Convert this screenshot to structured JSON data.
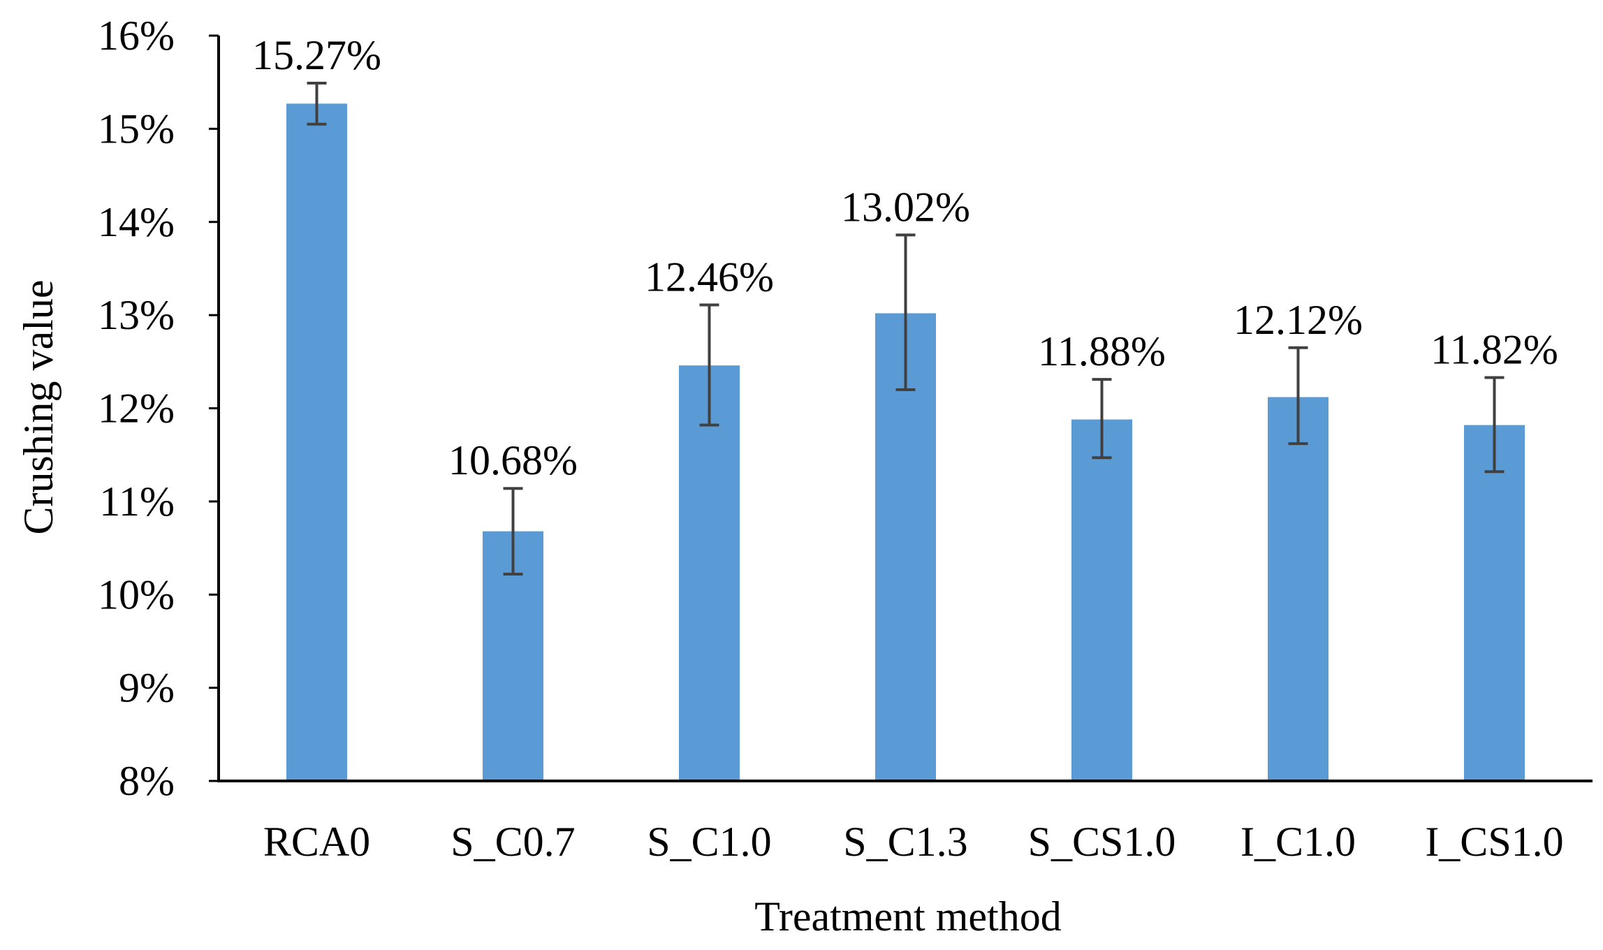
{
  "chart_data": {
    "type": "bar",
    "title": "",
    "xlabel": "Treatment method",
    "ylabel": "Crushing value",
    "ylim": [
      8,
      16
    ],
    "yticks": [
      8,
      9,
      10,
      11,
      12,
      13,
      14,
      15,
      16
    ],
    "ytick_labels": [
      "8%",
      "9%",
      "10%",
      "11%",
      "12%",
      "13%",
      "14%",
      "15%",
      "16%"
    ],
    "categories": [
      "RCA0",
      "S_C0.7",
      "S_C1.0",
      "S_C1.3",
      "S_CS1.0",
      "I_C1.0",
      "I_CS1.0"
    ],
    "values": [
      15.27,
      10.68,
      12.46,
      13.02,
      11.88,
      12.12,
      11.82
    ],
    "data_labels": [
      "15.27%",
      "10.68%",
      "12.46%",
      "13.02%",
      "11.88%",
      "12.12%",
      "11.82%"
    ],
    "error_low": [
      15.05,
      10.22,
      11.82,
      12.2,
      11.47,
      11.62,
      11.32
    ],
    "error_high": [
      15.49,
      11.14,
      13.11,
      13.86,
      12.31,
      12.65,
      12.33
    ],
    "grid": false,
    "legend": "none",
    "colors": {
      "bar": "#5b9bd5",
      "error_bar": "#404040",
      "axis": "#000000"
    }
  }
}
